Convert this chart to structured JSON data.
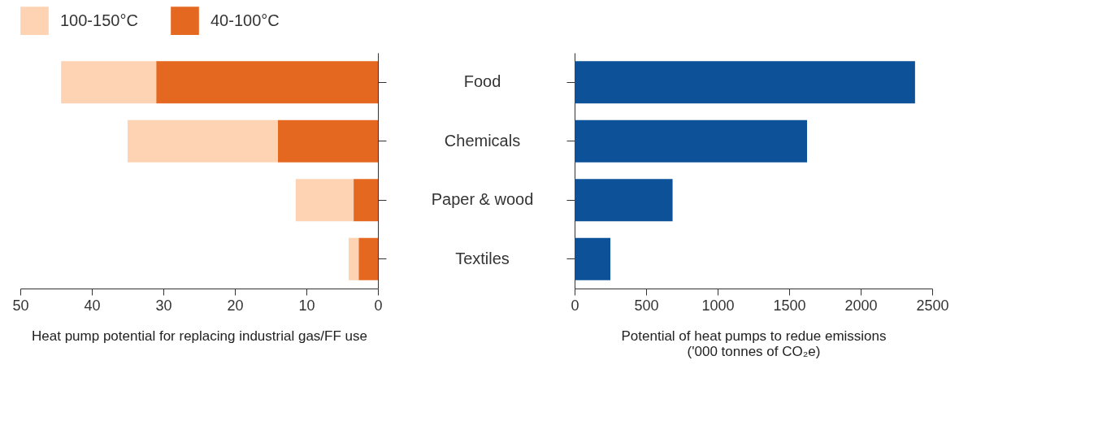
{
  "chart_data": [
    {
      "type": "bar",
      "orientation": "horizontal",
      "stacked": true,
      "categories": [
        "Food",
        "Chemicals",
        "Paper & wood",
        "Textiles"
      ],
      "series": [
        {
          "name": "40-100°C",
          "color": "#e56820",
          "values": [
            31,
            14,
            3.4,
            2.7
          ]
        },
        {
          "name": "100-150°C",
          "color": "#fdd3b4",
          "values": [
            13.3,
            21,
            8.1,
            1.4
          ]
        }
      ],
      "xlim": [
        50,
        0
      ],
      "xticks": [
        50,
        40,
        30,
        20,
        10,
        0
      ],
      "xlabel": "Heat pump potential for replacing industrial gas/FF use",
      "legend": "top left"
    },
    {
      "type": "bar",
      "orientation": "horizontal",
      "categories": [
        null,
        null,
        null,
        null
      ],
      "series": [
        {
          "color": "#0d5199",
          "values": [
            2380,
            1625,
            685,
            250
          ]
        }
      ],
      "xlim": [
        0,
        2500
      ],
      "xticks": [
        0,
        500,
        1000,
        1500,
        2000,
        2500
      ],
      "xlabel": "Potential of heat pumps to redue emissions\n('000 tonnes of CO₂e)",
      "tick_labels": "x"
    }
  ]
}
